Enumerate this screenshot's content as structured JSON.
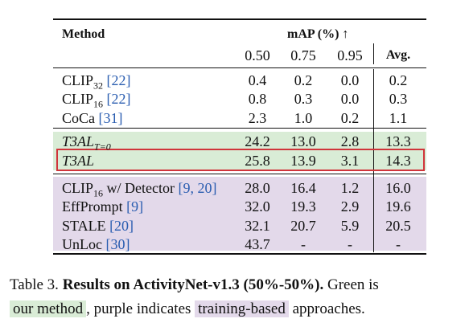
{
  "table": {
    "header": {
      "method": "Method",
      "metric": "mAP (%) ↑",
      "thresholds": [
        "0.50",
        "0.75",
        "0.95"
      ],
      "avg": "Avg."
    },
    "groups": [
      {
        "style": "plain",
        "rows": [
          {
            "name": "CLIP",
            "sub": "32",
            "cite": "[22]",
            "values": [
              "0.4",
              "0.2",
              "0.0"
            ],
            "avg": "0.2"
          },
          {
            "name": "CLIP",
            "sub": "16",
            "cite": "[22]",
            "values": [
              "0.8",
              "0.3",
              "0.0"
            ],
            "avg": "0.3"
          },
          {
            "name": "CoCa",
            "sub": "",
            "cite": "[31]",
            "values": [
              "2.3",
              "1.0",
              "0.2"
            ],
            "avg": "1.1"
          }
        ]
      },
      {
        "style": "ours",
        "rows": [
          {
            "name": "T3AL",
            "sub": "T=0",
            "cite": "",
            "values": [
              "24.2",
              "13.0",
              "2.8"
            ],
            "avg": "13.3"
          },
          {
            "name": "T3AL",
            "sub": "",
            "cite": "",
            "values": [
              "25.8",
              "13.9",
              "3.1"
            ],
            "avg": "14.3",
            "highlight": true
          }
        ]
      },
      {
        "style": "training",
        "rows": [
          {
            "name": "CLIP",
            "sub": "16",
            "suffix": " w/ Detector",
            "cite": "[9, 20]",
            "values": [
              "28.0",
              "16.4",
              "1.2"
            ],
            "avg": "16.0"
          },
          {
            "name": "EffPrompt",
            "sub": "",
            "cite": "[9]",
            "values": [
              "32.0",
              "19.3",
              "2.9"
            ],
            "avg": "19.6"
          },
          {
            "name": "STALE",
            "sub": "",
            "cite": "[20]",
            "values": [
              "32.1",
              "20.7",
              "5.9"
            ],
            "avg": "20.5"
          },
          {
            "name": "UnLoc",
            "sub": "",
            "cite": "[30]",
            "values": [
              "43.7",
              "-",
              "-"
            ],
            "avg": "-"
          }
        ]
      }
    ]
  },
  "caption": {
    "label": "Table 3.",
    "title": "Results on ActivityNet-v1.3 (50%-50%).",
    "text1": " Green is",
    "green_term": "our method",
    "text2": ", purple indicates",
    "purple_term": "training-based",
    "text3": " approaches."
  },
  "colors": {
    "ours_band": "#d9ecd6",
    "training_band": "#e3d9ea",
    "highlight_border": "#d0343a",
    "citation": "#2a5db0"
  }
}
